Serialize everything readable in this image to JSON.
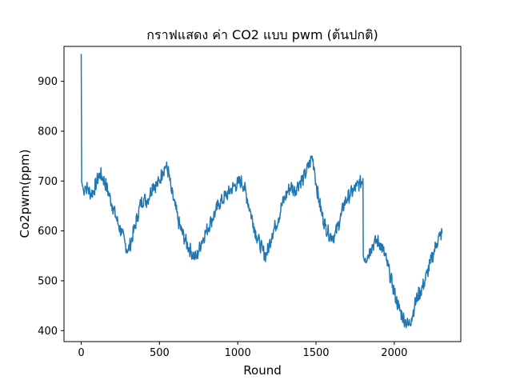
{
  "chart_data": {
    "type": "line",
    "title": "กราฟแสดง ค่า CO2 แบบ pwm (ต้นปกติ)",
    "xlabel": "Round",
    "ylabel": "Co2pwm(ppm)",
    "xlim": [
      -110,
      2425
    ],
    "ylim": [
      378,
      970
    ],
    "xticks": [
      0,
      500,
      1000,
      1500,
      2000
    ],
    "yticks": [
      400,
      500,
      600,
      700,
      800,
      900
    ],
    "grid": false,
    "legend": "none",
    "colors": {
      "line": "#1f77b4"
    },
    "series": [
      {
        "points": [
          [
            0,
            955
          ],
          [
            3,
            700
          ],
          [
            8,
            690
          ],
          [
            15,
            680
          ],
          [
            25,
            690
          ],
          [
            40,
            685
          ],
          [
            60,
            675
          ],
          [
            80,
            680
          ],
          [
            100,
            700
          ],
          [
            120,
            715
          ],
          [
            140,
            705
          ],
          [
            160,
            690
          ],
          [
            180,
            670
          ],
          [
            200,
            650
          ],
          [
            220,
            630
          ],
          [
            240,
            610
          ],
          [
            260,
            595
          ],
          [
            280,
            575
          ],
          [
            300,
            560
          ],
          [
            320,
            580
          ],
          [
            340,
            605
          ],
          [
            360,
            630
          ],
          [
            380,
            655
          ],
          [
            400,
            665
          ],
          [
            420,
            660
          ],
          [
            440,
            675
          ],
          [
            460,
            695
          ],
          [
            480,
            690
          ],
          [
            500,
            700
          ],
          [
            520,
            720
          ],
          [
            540,
            730
          ],
          [
            560,
            715
          ],
          [
            575,
            680
          ],
          [
            600,
            650
          ],
          [
            620,
            620
          ],
          [
            640,
            600
          ],
          [
            660,
            585
          ],
          [
            680,
            570
          ],
          [
            700,
            560
          ],
          [
            720,
            550
          ],
          [
            735,
            545
          ],
          [
            750,
            560
          ],
          [
            770,
            580
          ],
          [
            800,
            600
          ],
          [
            830,
            620
          ],
          [
            860,
            640
          ],
          [
            880,
            655
          ],
          [
            900,
            660
          ],
          [
            920,
            670
          ],
          [
            940,
            675
          ],
          [
            960,
            685
          ],
          [
            980,
            690
          ],
          [
            1000,
            695
          ],
          [
            1020,
            700
          ],
          [
            1040,
            690
          ],
          [
            1060,
            665
          ],
          [
            1080,
            640
          ],
          [
            1100,
            615
          ],
          [
            1120,
            590
          ],
          [
            1140,
            575
          ],
          [
            1160,
            560
          ],
          [
            1180,
            550
          ],
          [
            1200,
            570
          ],
          [
            1220,
            595
          ],
          [
            1240,
            610
          ],
          [
            1260,
            625
          ],
          [
            1280,
            650
          ],
          [
            1300,
            665
          ],
          [
            1320,
            680
          ],
          [
            1340,
            690
          ],
          [
            1360,
            680
          ],
          [
            1380,
            690
          ],
          [
            1400,
            700
          ],
          [
            1420,
            705
          ],
          [
            1440,
            720
          ],
          [
            1460,
            735
          ],
          [
            1475,
            750
          ],
          [
            1490,
            725
          ],
          [
            1500,
            695
          ],
          [
            1520,
            660
          ],
          [
            1540,
            630
          ],
          [
            1560,
            610
          ],
          [
            1580,
            595
          ],
          [
            1600,
            590
          ],
          [
            1620,
            590
          ],
          [
            1640,
            610
          ],
          [
            1660,
            630
          ],
          [
            1680,
            655
          ],
          [
            1700,
            665
          ],
          [
            1720,
            675
          ],
          [
            1740,
            680
          ],
          [
            1760,
            690
          ],
          [
            1780,
            695
          ],
          [
            1800,
            705
          ],
          [
            1802,
            550
          ],
          [
            1815,
            545
          ],
          [
            1830,
            550
          ],
          [
            1850,
            565
          ],
          [
            1870,
            575
          ],
          [
            1890,
            580
          ],
          [
            1910,
            575
          ],
          [
            1930,
            560
          ],
          [
            1950,
            540
          ],
          [
            1970,
            515
          ],
          [
            1990,
            490
          ],
          [
            2010,
            465
          ],
          [
            2030,
            445
          ],
          [
            2050,
            430
          ],
          [
            2070,
            420
          ],
          [
            2090,
            410
          ],
          [
            2110,
            425
          ],
          [
            2130,
            450
          ],
          [
            2150,
            470
          ],
          [
            2170,
            480
          ],
          [
            2190,
            495
          ],
          [
            2210,
            515
          ],
          [
            2230,
            535
          ],
          [
            2250,
            555
          ],
          [
            2270,
            575
          ],
          [
            2290,
            590
          ],
          [
            2305,
            595
          ]
        ]
      }
    ]
  }
}
